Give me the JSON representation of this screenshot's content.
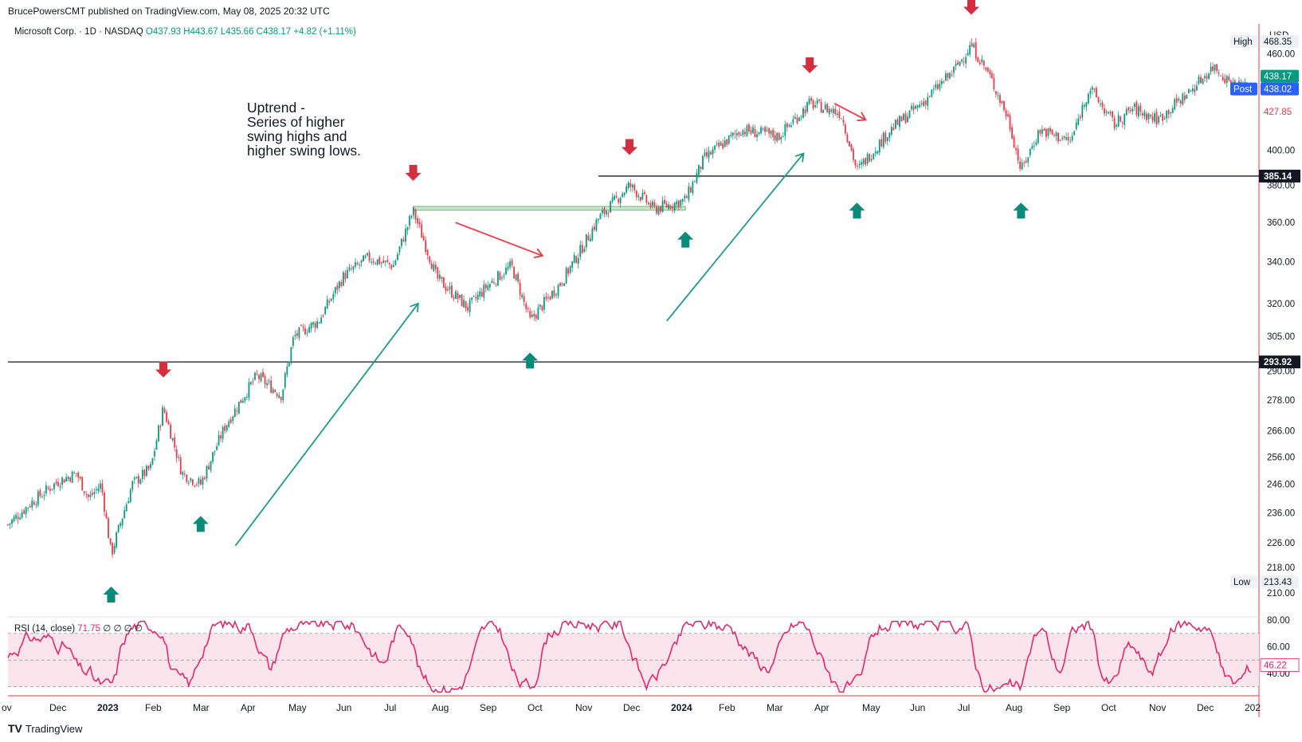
{
  "publisher": "BrucePowersCMT published on TradingView.com, May 08, 2025 20:32 UTC",
  "symbol_legend": {
    "symbol": "Microsoft Corp. · 1D · NASDAQ",
    "open": "O437.93",
    "high": "H443.67",
    "low": "L435.66",
    "close": "C438.17",
    "change": "+4.82 (+1.11%)"
  },
  "annotation": "Uptrend -\nSeries of higher\nswing highs and\nhigher swing lows.",
  "currency": "USD",
  "footer_brand": "TradingView",
  "colors": {
    "up": "#089981",
    "down": "#f23645",
    "arrow_red": "#d32f3f",
    "arrow_teal": "#0a8a7a",
    "trend_teal": "#1e9a8a",
    "trend_red": "#f23645",
    "rsi": "#e91e63",
    "rsi_band": "#fce4ec",
    "zone": "#c8e6c9"
  },
  "chart_data": {
    "type": "candlestick",
    "ylim": [
      205,
      475
    ],
    "price_ticks": [
      "460.00",
      "400.00",
      "380.00",
      "360.00",
      "340.00",
      "320.00",
      "305.00",
      "290.00",
      "278.00",
      "266.00",
      "256.00",
      "246.00",
      "236.00",
      "226.00",
      "218.00",
      "210.00"
    ],
    "x_labels": [
      "ov",
      "Dec",
      "2023",
      "Feb",
      "Mar",
      "Apr",
      "May",
      "Jun",
      "Jul",
      "Aug",
      "Sep",
      "Oct",
      "Nov",
      "Dec",
      "2024",
      "Feb",
      "Mar",
      "Apr",
      "May",
      "Jun",
      "Jul",
      "Aug",
      "Sep",
      "Oct",
      "Nov",
      "Dec",
      "202"
    ],
    "x_label_bold": [
      "2023",
      "2024"
    ],
    "price_path": [
      [
        0,
        232
      ],
      [
        0.02,
        240
      ],
      [
        0.04,
        247
      ],
      [
        0.055,
        250
      ],
      [
        0.065,
        241
      ],
      [
        0.075,
        246
      ],
      [
        0.083,
        222
      ],
      [
        0.1,
        246
      ],
      [
        0.115,
        252
      ],
      [
        0.125,
        275
      ],
      [
        0.14,
        250
      ],
      [
        0.155,
        246
      ],
      [
        0.175,
        268
      ],
      [
        0.2,
        288
      ],
      [
        0.22,
        280
      ],
      [
        0.23,
        305
      ],
      [
        0.25,
        312
      ],
      [
        0.27,
        333
      ],
      [
        0.29,
        342
      ],
      [
        0.31,
        338
      ],
      [
        0.326,
        366
      ],
      [
        0.345,
        332
      ],
      [
        0.37,
        318
      ],
      [
        0.385,
        328
      ],
      [
        0.405,
        338
      ],
      [
        0.42,
        312
      ],
      [
        0.445,
        330
      ],
      [
        0.46,
        345
      ],
      [
        0.475,
        362
      ],
      [
        0.5,
        380
      ],
      [
        0.52,
        367
      ],
      [
        0.545,
        372
      ],
      [
        0.56,
        395
      ],
      [
        0.59,
        412
      ],
      [
        0.62,
        408
      ],
      [
        0.645,
        428
      ],
      [
        0.67,
        422
      ],
      [
        0.683,
        388
      ],
      [
        0.71,
        412
      ],
      [
        0.735,
        428
      ],
      [
        0.76,
        448
      ],
      [
        0.775,
        466
      ],
      [
        0.79,
        445
      ],
      [
        0.805,
        418
      ],
      [
        0.815,
        388
      ],
      [
        0.83,
        412
      ],
      [
        0.855,
        405
      ],
      [
        0.87,
        438
      ],
      [
        0.89,
        415
      ],
      [
        0.905,
        425
      ],
      [
        0.925,
        418
      ],
      [
        0.95,
        435
      ],
      [
        0.97,
        452
      ],
      [
        0.985,
        440
      ],
      [
        1.0,
        438
      ]
    ],
    "horizontal_levels": [
      {
        "value": 385.14,
        "label": "385.14"
      },
      {
        "value": 293.92,
        "label": "293.92"
      }
    ],
    "resistance_zone": {
      "from": 366.5,
      "to": 368.5
    },
    "price_labels": {
      "high_tag": "High",
      "high_value": "468.35",
      "last": "438.17",
      "post_tag": "Post",
      "post_value": "438.02",
      "prev": "427.85",
      "low_tag": "Low",
      "low_value": "213.43"
    },
    "swing_highs": [
      0.125,
      0.326,
      0.5,
      0.645,
      0.775
    ],
    "swing_lows": [
      0.083,
      0.155,
      0.42,
      0.545,
      0.683,
      0.815
    ],
    "trendlines": [
      {
        "color": "teal",
        "from": [
          0.183,
          225
        ],
        "to": [
          0.33,
          320
        ]
      },
      {
        "color": "red",
        "from": [
          0.36,
          360
        ],
        "to": [
          0.43,
          343
        ]
      },
      {
        "color": "teal",
        "from": [
          0.53,
          312
        ],
        "to": [
          0.64,
          398
        ]
      },
      {
        "color": "red",
        "from": [
          0.665,
          428
        ],
        "to": [
          0.69,
          418
        ]
      }
    ],
    "rsi": {
      "label": "RSI (14, close)",
      "value": "71.75",
      "extra": "∅ ∅ ∅ ∅",
      "last": "46.22",
      "ticks": [
        "80.00",
        "60.00",
        "40.00"
      ],
      "ylim": [
        25,
        80
      ],
      "bands": [
        70,
        50,
        30
      ]
    }
  }
}
